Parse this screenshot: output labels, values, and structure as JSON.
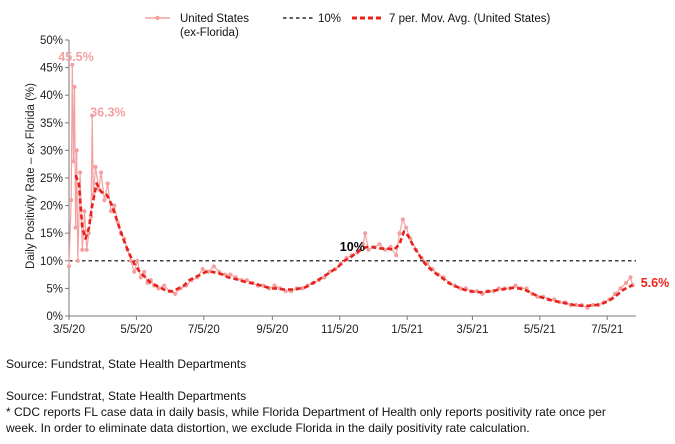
{
  "chart_data": {
    "type": "line",
    "title": "",
    "ylabel": "Daily Positivity Rate – ex Florida (%)",
    "xlabel": "",
    "ylim": [
      0,
      50
    ],
    "xlim": [
      "2020-03-05",
      "2021-07-31"
    ],
    "y_ticks": [
      "0%",
      "5%",
      "10%",
      "15%",
      "20%",
      "25%",
      "30%",
      "35%",
      "40%",
      "45%",
      "50%"
    ],
    "x_ticks": [
      {
        "date": "2020-03-05",
        "label": "3/5/20"
      },
      {
        "date": "2020-05-05",
        "label": "5/5/20"
      },
      {
        "date": "2020-07-05",
        "label": "7/5/20"
      },
      {
        "date": "2020-09-05",
        "label": "9/5/20"
      },
      {
        "date": "2020-11-05",
        "label": "11/5/20"
      },
      {
        "date": "2021-01-05",
        "label": "1/5/21"
      },
      {
        "date": "2021-03-05",
        "label": "3/5/21"
      },
      {
        "date": "2021-05-05",
        "label": "5/5/21"
      },
      {
        "date": "2021-07-05",
        "label": "7/5/21"
      }
    ],
    "grid": false,
    "legend_position": "top",
    "threshold": {
      "value": 10,
      "label": "10%",
      "legend": "10%",
      "color": "#000000"
    },
    "series": [
      {
        "name": "United States\n(ex-Florida)",
        "kind": "daily",
        "color": "#f4a0a0",
        "points": [
          [
            "2020-03-05",
            9
          ],
          [
            "2020-03-07",
            21
          ],
          [
            "2020-03-08",
            45.5
          ],
          [
            "2020-03-09",
            28
          ],
          [
            "2020-03-10",
            41.5
          ],
          [
            "2020-03-11",
            16
          ],
          [
            "2020-03-12",
            30
          ],
          [
            "2020-03-13",
            10
          ],
          [
            "2020-03-15",
            26
          ],
          [
            "2020-03-17",
            12
          ],
          [
            "2020-03-19",
            19
          ],
          [
            "2020-03-21",
            12
          ],
          [
            "2020-03-23",
            15
          ],
          [
            "2020-03-25",
            18
          ],
          [
            "2020-03-26",
            36.3
          ],
          [
            "2020-03-27",
            22
          ],
          [
            "2020-03-29",
            27
          ],
          [
            "2020-04-01",
            23
          ],
          [
            "2020-04-03",
            26
          ],
          [
            "2020-04-06",
            21
          ],
          [
            "2020-04-09",
            24
          ],
          [
            "2020-04-12",
            19
          ],
          [
            "2020-04-15",
            20
          ],
          [
            "2020-04-18",
            17
          ],
          [
            "2020-04-21",
            15
          ],
          [
            "2020-04-24",
            14
          ],
          [
            "2020-04-27",
            12
          ],
          [
            "2020-04-30",
            10
          ],
          [
            "2020-05-03",
            8
          ],
          [
            "2020-05-06",
            10
          ],
          [
            "2020-05-09",
            7
          ],
          [
            "2020-05-12",
            8
          ],
          [
            "2020-05-15",
            6
          ],
          [
            "2020-05-18",
            6.5
          ],
          [
            "2020-05-21",
            5.5
          ],
          [
            "2020-05-25",
            5
          ],
          [
            "2020-05-30",
            5.5
          ],
          [
            "2020-06-04",
            4.5
          ],
          [
            "2020-06-09",
            4
          ],
          [
            "2020-06-14",
            5
          ],
          [
            "2020-06-19",
            5.5
          ],
          [
            "2020-06-24",
            6.5
          ],
          [
            "2020-06-29",
            7
          ],
          [
            "2020-07-04",
            8.5
          ],
          [
            "2020-07-09",
            8
          ],
          [
            "2020-07-14",
            9
          ],
          [
            "2020-07-19",
            8
          ],
          [
            "2020-07-24",
            7.5
          ],
          [
            "2020-07-29",
            7.5
          ],
          [
            "2020-08-03",
            7
          ],
          [
            "2020-08-08",
            6.5
          ],
          [
            "2020-08-13",
            6.5
          ],
          [
            "2020-08-18",
            6
          ],
          [
            "2020-08-23",
            5.5
          ],
          [
            "2020-08-28",
            5.5
          ],
          [
            "2020-09-02",
            5
          ],
          [
            "2020-09-07",
            5.5
          ],
          [
            "2020-09-12",
            5
          ],
          [
            "2020-09-17",
            4.5
          ],
          [
            "2020-09-22",
            4.5
          ],
          [
            "2020-09-27",
            5
          ],
          [
            "2020-10-02",
            5
          ],
          [
            "2020-10-07",
            5.5
          ],
          [
            "2020-10-12",
            6
          ],
          [
            "2020-10-17",
            6.5
          ],
          [
            "2020-10-22",
            7
          ],
          [
            "2020-10-27",
            8
          ],
          [
            "2020-11-01",
            8.5
          ],
          [
            "2020-11-06",
            9.5
          ],
          [
            "2020-11-11",
            10.5
          ],
          [
            "2020-11-16",
            11
          ],
          [
            "2020-11-21",
            11.5
          ],
          [
            "2020-11-26",
            13
          ],
          [
            "2020-11-28",
            15
          ],
          [
            "2020-12-01",
            12
          ],
          [
            "2020-12-06",
            12.5
          ],
          [
            "2020-12-11",
            13
          ],
          [
            "2020-12-16",
            12
          ],
          [
            "2020-12-21",
            12.5
          ],
          [
            "2020-12-26",
            11
          ],
          [
            "2020-12-29",
            15
          ],
          [
            "2021-01-01",
            17.5
          ],
          [
            "2021-01-04",
            16
          ],
          [
            "2021-01-08",
            14
          ],
          [
            "2021-01-13",
            12
          ],
          [
            "2021-01-18",
            10.5
          ],
          [
            "2021-01-23",
            9.5
          ],
          [
            "2021-01-28",
            8.5
          ],
          [
            "2021-02-02",
            7.5
          ],
          [
            "2021-02-07",
            7
          ],
          [
            "2021-02-12",
            6
          ],
          [
            "2021-02-17",
            5.5
          ],
          [
            "2021-02-22",
            5
          ],
          [
            "2021-02-27",
            5
          ],
          [
            "2021-03-04",
            4.5
          ],
          [
            "2021-03-09",
            4.5
          ],
          [
            "2021-03-14",
            4
          ],
          [
            "2021-03-19",
            4.5
          ],
          [
            "2021-03-24",
            4.5
          ],
          [
            "2021-03-29",
            5
          ],
          [
            "2021-04-03",
            5
          ],
          [
            "2021-04-08",
            5
          ],
          [
            "2021-04-13",
            5.5
          ],
          [
            "2021-04-18",
            5
          ],
          [
            "2021-04-23",
            5
          ],
          [
            "2021-04-28",
            4
          ],
          [
            "2021-05-03",
            3.5
          ],
          [
            "2021-05-08",
            3.5
          ],
          [
            "2021-05-13",
            3
          ],
          [
            "2021-05-18",
            3
          ],
          [
            "2021-05-23",
            2.5
          ],
          [
            "2021-05-28",
            2.5
          ],
          [
            "2021-06-02",
            2
          ],
          [
            "2021-06-07",
            2
          ],
          [
            "2021-06-12",
            2
          ],
          [
            "2021-06-17",
            1.5
          ],
          [
            "2021-06-22",
            2
          ],
          [
            "2021-06-27",
            2
          ],
          [
            "2021-07-02",
            2.5
          ],
          [
            "2021-07-07",
            3
          ],
          [
            "2021-07-12",
            4
          ],
          [
            "2021-07-17",
            5
          ],
          [
            "2021-07-22",
            6
          ],
          [
            "2021-07-26",
            7
          ],
          [
            "2021-07-28",
            5.6
          ]
        ]
      },
      {
        "name": "7 per. Mov. Avg. (United States)",
        "kind": "moving-average",
        "color": "#e8211a",
        "points": [
          [
            "2020-03-11",
            25.5
          ],
          [
            "2020-03-14",
            24
          ],
          [
            "2020-03-17",
            16
          ],
          [
            "2020-03-20",
            14
          ],
          [
            "2020-03-23",
            16
          ],
          [
            "2020-03-26",
            20
          ],
          [
            "2020-03-30",
            24
          ],
          [
            "2020-04-03",
            22.5
          ],
          [
            "2020-04-08",
            22
          ],
          [
            "2020-04-13",
            20
          ],
          [
            "2020-04-18",
            17
          ],
          [
            "2020-04-23",
            14
          ],
          [
            "2020-04-28",
            11.5
          ],
          [
            "2020-05-03",
            9.5
          ],
          [
            "2020-05-08",
            8
          ],
          [
            "2020-05-13",
            7
          ],
          [
            "2020-05-18",
            6
          ],
          [
            "2020-05-23",
            5.5
          ],
          [
            "2020-05-28",
            5
          ],
          [
            "2020-06-02",
            4.5
          ],
          [
            "2020-06-07",
            4.5
          ],
          [
            "2020-06-12",
            5
          ],
          [
            "2020-06-17",
            5.5
          ],
          [
            "2020-06-22",
            6.5
          ],
          [
            "2020-06-27",
            7
          ],
          [
            "2020-07-02",
            7.5
          ],
          [
            "2020-07-07",
            8
          ],
          [
            "2020-07-12",
            8
          ],
          [
            "2020-07-17",
            7.8
          ],
          [
            "2020-07-22",
            7.5
          ],
          [
            "2020-07-27",
            7
          ],
          [
            "2020-08-01",
            6.8
          ],
          [
            "2020-08-06",
            6.5
          ],
          [
            "2020-08-11",
            6.2
          ],
          [
            "2020-08-16",
            6
          ],
          [
            "2020-08-21",
            5.8
          ],
          [
            "2020-08-26",
            5.5
          ],
          [
            "2020-08-31",
            5.2
          ],
          [
            "2020-09-05",
            5
          ],
          [
            "2020-09-10",
            5
          ],
          [
            "2020-09-15",
            4.8
          ],
          [
            "2020-09-20",
            4.8
          ],
          [
            "2020-09-25",
            4.8
          ],
          [
            "2020-09-30",
            5
          ],
          [
            "2020-10-05",
            5.2
          ],
          [
            "2020-10-10",
            5.8
          ],
          [
            "2020-10-15",
            6.3
          ],
          [
            "2020-10-20",
            7
          ],
          [
            "2020-10-25",
            7.6
          ],
          [
            "2020-10-30",
            8.3
          ],
          [
            "2020-11-04",
            9
          ],
          [
            "2020-11-09",
            10
          ],
          [
            "2020-11-14",
            10.5
          ],
          [
            "2020-11-19",
            11.3
          ],
          [
            "2020-11-24",
            12
          ],
          [
            "2020-11-29",
            12.5
          ],
          [
            "2020-12-04",
            12.5
          ],
          [
            "2020-12-09",
            12.3
          ],
          [
            "2020-12-14",
            12.2
          ],
          [
            "2020-12-19",
            12.2
          ],
          [
            "2020-12-24",
            12
          ],
          [
            "2020-12-29",
            13
          ],
          [
            "2021-01-02",
            15.3
          ],
          [
            "2021-01-06",
            14.5
          ],
          [
            "2021-01-11",
            12.5
          ],
          [
            "2021-01-16",
            11
          ],
          [
            "2021-01-21",
            9.5
          ],
          [
            "2021-01-26",
            8.5
          ],
          [
            "2021-01-31",
            7.7
          ],
          [
            "2021-02-05",
            7
          ],
          [
            "2021-02-10",
            6.2
          ],
          [
            "2021-02-15",
            5.6
          ],
          [
            "2021-02-20",
            5.2
          ],
          [
            "2021-02-25",
            4.8
          ],
          [
            "2021-03-02",
            4.5
          ],
          [
            "2021-03-07",
            4.4
          ],
          [
            "2021-03-12",
            4.3
          ],
          [
            "2021-03-17",
            4.4
          ],
          [
            "2021-03-22",
            4.5
          ],
          [
            "2021-03-27",
            4.7
          ],
          [
            "2021-04-01",
            4.8
          ],
          [
            "2021-04-06",
            5
          ],
          [
            "2021-04-11",
            5.1
          ],
          [
            "2021-04-16",
            5
          ],
          [
            "2021-04-21",
            4.8
          ],
          [
            "2021-04-26",
            4.3
          ],
          [
            "2021-05-01",
            3.8
          ],
          [
            "2021-05-06",
            3.4
          ],
          [
            "2021-05-11",
            3.1
          ],
          [
            "2021-05-16",
            2.8
          ],
          [
            "2021-05-21",
            2.6
          ],
          [
            "2021-05-26",
            2.4
          ],
          [
            "2021-05-31",
            2.2
          ],
          [
            "2021-06-05",
            2
          ],
          [
            "2021-06-10",
            1.9
          ],
          [
            "2021-06-15",
            1.8
          ],
          [
            "2021-06-20",
            1.9
          ],
          [
            "2021-06-25",
            2
          ],
          [
            "2021-06-30",
            2.2
          ],
          [
            "2021-07-05",
            2.6
          ],
          [
            "2021-07-10",
            3.2
          ],
          [
            "2021-07-15",
            4
          ],
          [
            "2021-07-20",
            4.8
          ],
          [
            "2021-07-25",
            5.3
          ],
          [
            "2021-07-28",
            5.6
          ]
        ]
      }
    ],
    "annotations": [
      {
        "text": "45.5%",
        "date": "2020-03-08",
        "value": 45.5,
        "color": "#f4a0a0"
      },
      {
        "text": "36.3%",
        "date": "2020-03-26",
        "value": 36.3,
        "color": "#f4a0a0"
      },
      {
        "text": "10%",
        "date": "2020-11-05",
        "value": 10,
        "color": "#000000"
      },
      {
        "text": "5.6%",
        "date": "2021-07-28",
        "value": 5.6,
        "color": "#e8211a"
      }
    ]
  },
  "notes": {
    "source_line_1": "Source: Fundstrat, State Health Departments",
    "source_line_2": "Source: Fundstrat, State Health Departments",
    "footnote_line_1": "* CDC reports FL case data in daily basis, while Florida Department of Health only reports positivity rate once per",
    "footnote_line_2": "week. In order to eliminate data distortion, we exclude Florida in the daily positivity rate calculation."
  }
}
